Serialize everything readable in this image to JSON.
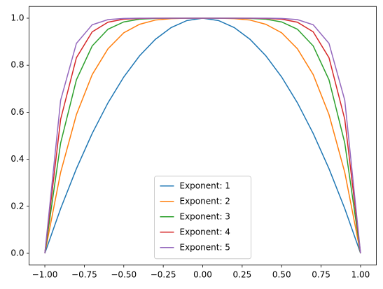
{
  "chart_data": {
    "type": "line",
    "x": [
      -1,
      -0.9,
      -0.8,
      -0.7,
      -0.6,
      -0.5,
      -0.4,
      -0.3,
      -0.2,
      -0.1,
      0,
      0.1,
      0.2,
      0.3,
      0.4,
      0.5,
      0.6,
      0.7,
      0.8,
      0.9,
      1
    ],
    "series": [
      {
        "name": "Exponent: 1",
        "color": "#1f77b4",
        "values": [
          0,
          0.19,
          0.36,
          0.51,
          0.64,
          0.75,
          0.84,
          0.91,
          0.96,
          0.99,
          1,
          0.99,
          0.96,
          0.91,
          0.84,
          0.75,
          0.64,
          0.51,
          0.36,
          0.19,
          0
        ]
      },
      {
        "name": "Exponent: 2",
        "color": "#ff7f0e",
        "values": [
          0,
          0.344,
          0.59,
          0.76,
          0.87,
          0.938,
          0.974,
          0.992,
          0.998,
          1,
          1,
          1,
          0.998,
          0.992,
          0.974,
          0.938,
          0.87,
          0.76,
          0.59,
          0.344,
          0
        ]
      },
      {
        "name": "Exponent: 3",
        "color": "#2ca02c",
        "values": [
          0,
          0.469,
          0.738,
          0.882,
          0.953,
          0.984,
          0.996,
          0.999,
          1,
          1,
          1,
          1,
          1,
          0.999,
          0.996,
          0.984,
          0.953,
          0.882,
          0.738,
          0.469,
          0
        ]
      },
      {
        "name": "Exponent: 4",
        "color": "#d62728",
        "values": [
          0,
          0.57,
          0.832,
          0.942,
          0.983,
          0.996,
          0.999,
          1,
          1,
          1,
          1,
          1,
          1,
          1,
          0.999,
          0.996,
          0.983,
          0.942,
          0.832,
          0.57,
          0
        ]
      },
      {
        "name": "Exponent: 5",
        "color": "#9467bd",
        "values": [
          0,
          0.651,
          0.893,
          0.972,
          0.994,
          0.999,
          1,
          1,
          1,
          1,
          1,
          1,
          1,
          1,
          1,
          0.999,
          0.994,
          0.972,
          0.893,
          0.651,
          0
        ]
      }
    ],
    "xlim": [
      -1.1,
      1.1
    ],
    "xticks": [
      {
        "value": -1,
        "label": "−1.00"
      },
      {
        "value": -0.75,
        "label": "−0.75"
      },
      {
        "value": -0.5,
        "label": "−0.50"
      },
      {
        "value": -0.25,
        "label": "−0.25"
      },
      {
        "value": 0,
        "label": "0.00"
      },
      {
        "value": 0.25,
        "label": "0.25"
      },
      {
        "value": 0.5,
        "label": "0.50"
      },
      {
        "value": 0.75,
        "label": "0.75"
      },
      {
        "value": 1,
        "label": "1.00"
      }
    ],
    "ylim": [
      -0.05,
      1.05
    ],
    "yticks": [
      {
        "value": 0,
        "label": "0.0"
      },
      0.2,
      0.4,
      0.6,
      0.8,
      {
        "value": 1,
        "label": "1.0"
      }
    ],
    "legend": "lower center"
  }
}
